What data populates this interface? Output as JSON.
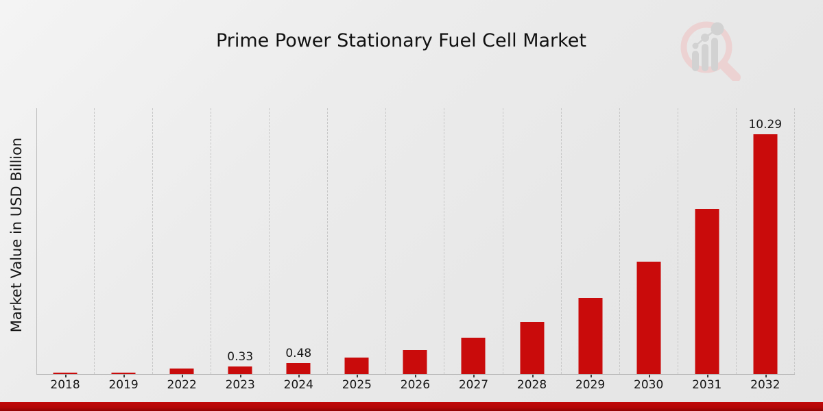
{
  "title": "Prime Power Stationary Fuel Cell Market",
  "ylabel": "Market Value in USD Billion",
  "icons": {
    "logo": "magnifier-bar-chart-watermark-icon"
  },
  "colors": {
    "bar": "#c90b0b",
    "band_top": "#c10909",
    "band_bottom": "#8f0404",
    "grid": "#c7c7c7",
    "spine": "#b3b3b3",
    "text": "#161616",
    "logo_pink": "#ecd2d2",
    "logo_gray": "#d2d2d2"
  },
  "chart_data": {
    "type": "bar",
    "title": "Prime Power Stationary Fuel Cell Market",
    "xlabel": "",
    "ylabel": "Market Value in USD Billion",
    "categories": [
      "2018",
      "2019",
      "2022",
      "2023",
      "2024",
      "2025",
      "2026",
      "2027",
      "2028",
      "2029",
      "2030",
      "2031",
      "2032"
    ],
    "values": [
      0.06,
      0.06,
      0.23,
      0.33,
      0.48,
      0.7,
      1.03,
      1.55,
      2.24,
      3.27,
      4.83,
      7.07,
      10.29
    ],
    "value_labels": {
      "2023": "0.33",
      "2024": "0.48",
      "2032": "10.29"
    },
    "ylim": [
      0,
      11.4
    ],
    "grid": "vertical-dashed",
    "legend": "none",
    "bar_color": "#c90b0b"
  }
}
